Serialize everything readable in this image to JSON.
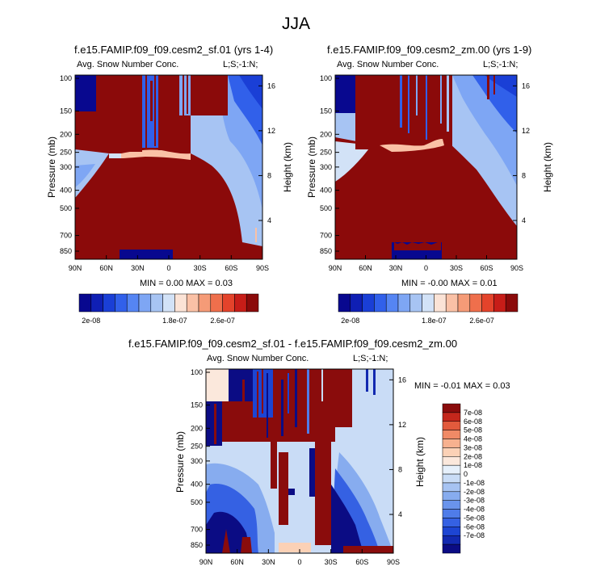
{
  "title": "JJA",
  "colors": {
    "abs_scale": [
      "#08088f",
      "#0f1fb4",
      "#1a3fd6",
      "#3160ea",
      "#5585f3",
      "#7ea6f4",
      "#a7c4f3",
      "#d2e2f7",
      "#fbe3d6",
      "#fac1a6",
      "#f59b77",
      "#ef6f4c",
      "#e4432b",
      "#c71d18",
      "#8b0a0a"
    ],
    "diff_scale": [
      "#0b0c84",
      "#1229b0",
      "#1d45d3",
      "#3561e3",
      "#4f7ce9",
      "#6a94ec",
      "#87acef",
      "#a7c3f2",
      "#c9dcf6",
      "#e6f0fb",
      "#fbe8dc",
      "#fbd1b6",
      "#f7b18f",
      "#f08a66",
      "#e25a3c",
      "#c4271c",
      "#8a0c0c"
    ]
  },
  "chart_data": [
    {
      "type": "heatmap",
      "id": "panel-1",
      "title": "f.e15.FAMIP.f09_f09.cesm2_sf.01 (yrs 1-4)",
      "left_label": "Avg. Snow Number Conc.",
      "right_label": "L;S;-1:N;",
      "xlabel": "",
      "ylabel": "Pressure (mb)",
      "y2label": "Height (km)",
      "xticks": [
        "90N",
        "60N",
        "30N",
        "0",
        "30S",
        "60S",
        "90S"
      ],
      "yticks": [
        100,
        150,
        200,
        250,
        300,
        400,
        500,
        700,
        850
      ],
      "y2ticks": [
        16,
        12,
        8,
        4
      ],
      "stats": "MIN =  0.00  MAX =  0.03",
      "colorbar_labels": [
        "2e-08",
        "1.8e-07",
        "2.6e-07"
      ]
    },
    {
      "type": "heatmap",
      "id": "panel-2",
      "title": "f.e15.FAMIP.f09_f09.cesm2_zm.00 (yrs 1-9)",
      "left_label": "Avg. Snow Number Conc.",
      "right_label": "L;S;-1:N;",
      "xlabel": "",
      "ylabel": "Pressure (mb)",
      "y2label": "Height (km)",
      "xticks": [
        "90N",
        "60N",
        "30N",
        "0",
        "30S",
        "60S",
        "90S"
      ],
      "yticks": [
        100,
        150,
        200,
        250,
        300,
        400,
        500,
        700,
        850
      ],
      "y2ticks": [
        16,
        12,
        8,
        4
      ],
      "stats": "MIN = -0.00  MAX =  0.01",
      "colorbar_labels": [
        "2e-08",
        "1.8e-07",
        "2.6e-07"
      ]
    },
    {
      "type": "heatmap",
      "id": "panel-diff",
      "title": "f.e15.FAMIP.f09_f09.cesm2_sf.01 - f.e15.FAMIP.f09_f09.cesm2_zm.00",
      "left_label": "Avg. Snow Number Conc.",
      "right_label": "L;S;-1:N;",
      "xlabel": "",
      "ylabel": "Pressure (mb)",
      "y2label": "Height (km)",
      "xticks": [
        "90N",
        "60N",
        "30N",
        "0",
        "30S",
        "60S",
        "90S"
      ],
      "yticks": [
        100,
        150,
        200,
        250,
        300,
        400,
        500,
        700,
        850
      ],
      "y2ticks": [
        16,
        12,
        8,
        4
      ],
      "stats": "MIN =  -0.01  MAX =   0.03",
      "colorbar_labels": [
        "7e-08",
        "6e-08",
        "5e-08",
        "4e-08",
        "3e-08",
        "2e-08",
        "1e-08",
        "0",
        "-1e-08",
        "-2e-08",
        "-3e-08",
        "-4e-08",
        "-5e-08",
        "-6e-08",
        "-7e-08"
      ]
    }
  ]
}
